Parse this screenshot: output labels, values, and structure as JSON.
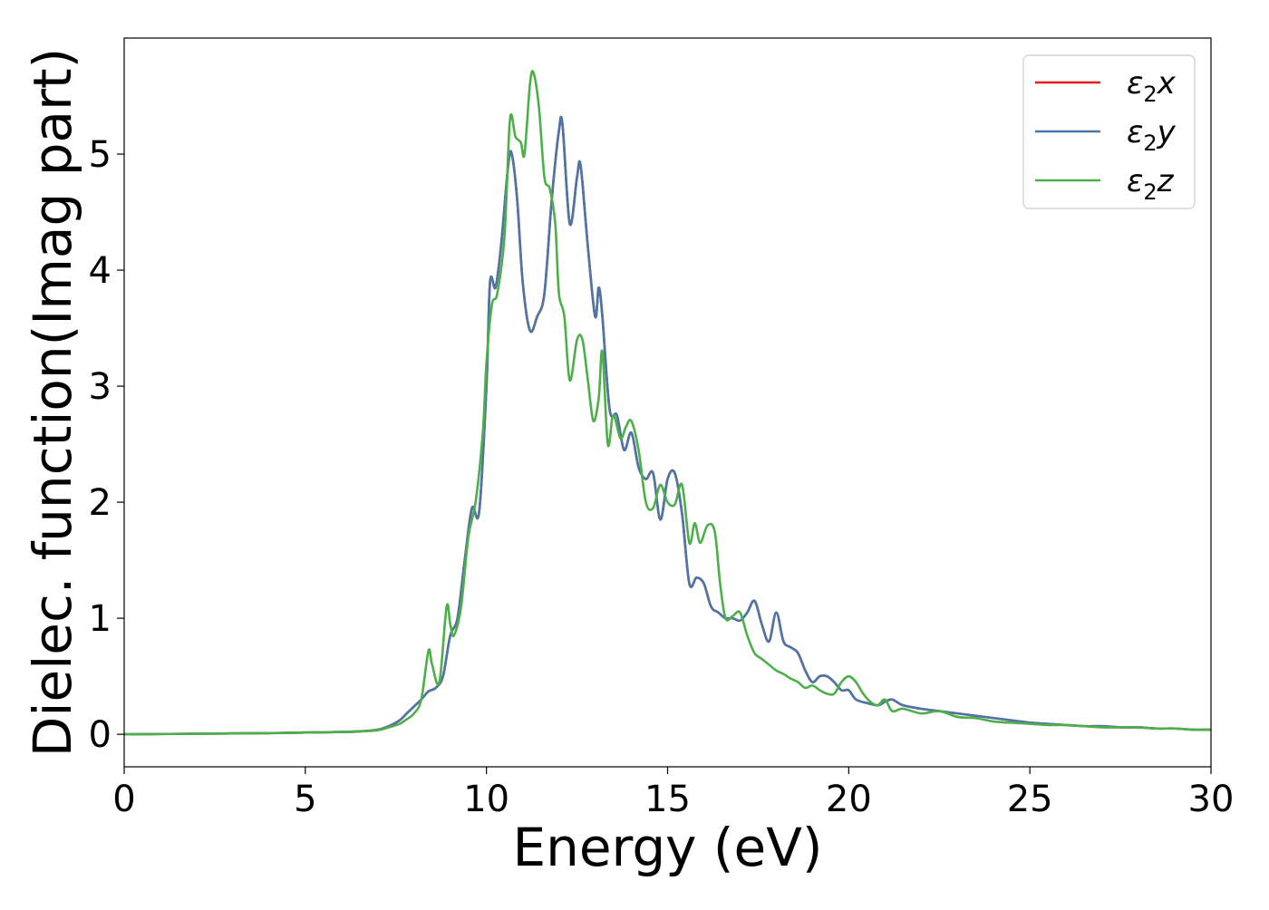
{
  "chart_data": {
    "type": "line",
    "xlabel": "Energy (eV)",
    "ylabel": "Dielec. function(Imag part)",
    "xlim": [
      0,
      30
    ],
    "ylim": [
      -0.28,
      6.0
    ],
    "xticks": [
      0,
      5,
      10,
      15,
      20,
      25,
      30
    ],
    "yticks": [
      0,
      1,
      2,
      3,
      4,
      5
    ],
    "grid": false,
    "legend_position": "top-right",
    "series": [
      {
        "name": "ε2x",
        "legend_base": "ε",
        "legend_sub": "2",
        "legend_tail": "x",
        "color": "#e41a1c",
        "x": [
          0,
          2,
          4,
          5,
          6,
          6.5,
          7,
          7.3,
          7.6,
          7.8,
          8.0,
          8.2,
          8.4,
          8.6,
          8.8,
          9.0,
          9.2,
          9.4,
          9.6,
          9.8,
          10.0,
          10.1,
          10.25,
          10.4,
          10.6,
          10.7,
          10.85,
          11.0,
          11.2,
          11.4,
          11.6,
          11.8,
          12.0,
          12.1,
          12.3,
          12.5,
          12.6,
          12.8,
          13.0,
          13.1,
          13.2,
          13.4,
          13.6,
          13.8,
          14.0,
          14.2,
          14.4,
          14.6,
          14.8,
          15.0,
          15.2,
          15.4,
          15.6,
          15.8,
          16.0,
          16.2,
          16.4,
          16.6,
          16.8,
          17.0,
          17.2,
          17.4,
          17.6,
          17.8,
          18.0,
          18.2,
          18.4,
          18.6,
          18.8,
          19.0,
          19.2,
          19.4,
          19.6,
          19.8,
          20.0,
          20.2,
          20.5,
          20.8,
          21.0,
          21.2,
          21.5,
          22.0,
          22.5,
          23.0,
          23.5,
          24.0,
          24.5,
          25.0,
          25.5,
          26.0,
          26.5,
          27.0,
          27.5,
          28.0,
          28.5,
          29.0,
          29.5,
          30.0
        ],
        "y": [
          0.0,
          0.005,
          0.01,
          0.015,
          0.02,
          0.025,
          0.04,
          0.07,
          0.12,
          0.18,
          0.24,
          0.3,
          0.37,
          0.4,
          0.5,
          0.85,
          1.0,
          1.5,
          1.95,
          1.92,
          3.0,
          3.9,
          3.85,
          4.2,
          4.9,
          5.0,
          4.6,
          3.9,
          3.48,
          3.6,
          3.8,
          4.6,
          5.2,
          5.25,
          4.4,
          4.8,
          4.9,
          4.2,
          3.6,
          3.85,
          3.6,
          2.8,
          2.75,
          2.45,
          2.6,
          2.3,
          2.2,
          2.25,
          1.85,
          2.2,
          2.25,
          1.9,
          1.3,
          1.35,
          1.3,
          1.1,
          1.05,
          1.0,
          1.0,
          0.98,
          1.05,
          1.15,
          0.95,
          0.8,
          1.05,
          0.8,
          0.75,
          0.7,
          0.55,
          0.45,
          0.5,
          0.5,
          0.45,
          0.38,
          0.38,
          0.3,
          0.27,
          0.25,
          0.28,
          0.3,
          0.25,
          0.22,
          0.2,
          0.18,
          0.16,
          0.14,
          0.12,
          0.1,
          0.09,
          0.08,
          0.07,
          0.07,
          0.06,
          0.06,
          0.05,
          0.05,
          0.04,
          0.04
        ]
      },
      {
        "name": "ε2y",
        "legend_base": "ε",
        "legend_sub": "2",
        "legend_tail": "y",
        "color": "#4a77a8",
        "x": [
          0,
          2,
          4,
          5,
          6,
          6.5,
          7,
          7.3,
          7.6,
          7.8,
          8.0,
          8.2,
          8.4,
          8.6,
          8.8,
          9.0,
          9.2,
          9.4,
          9.6,
          9.8,
          10.0,
          10.1,
          10.25,
          10.4,
          10.6,
          10.7,
          10.85,
          11.0,
          11.2,
          11.4,
          11.6,
          11.8,
          12.0,
          12.1,
          12.3,
          12.5,
          12.6,
          12.8,
          13.0,
          13.1,
          13.2,
          13.4,
          13.6,
          13.8,
          14.0,
          14.2,
          14.4,
          14.6,
          14.8,
          15.0,
          15.2,
          15.4,
          15.6,
          15.8,
          16.0,
          16.2,
          16.4,
          16.6,
          16.8,
          17.0,
          17.2,
          17.4,
          17.6,
          17.8,
          18.0,
          18.2,
          18.4,
          18.6,
          18.8,
          19.0,
          19.2,
          19.4,
          19.6,
          19.8,
          20.0,
          20.2,
          20.5,
          20.8,
          21.0,
          21.2,
          21.5,
          22.0,
          22.5,
          23.0,
          23.5,
          24.0,
          24.5,
          25.0,
          25.5,
          26.0,
          26.5,
          27.0,
          27.5,
          28.0,
          28.5,
          29.0,
          29.5,
          30.0
        ],
        "y": [
          0.0,
          0.005,
          0.01,
          0.015,
          0.02,
          0.025,
          0.04,
          0.07,
          0.12,
          0.18,
          0.24,
          0.3,
          0.37,
          0.4,
          0.5,
          0.85,
          1.0,
          1.5,
          1.95,
          1.92,
          3.0,
          3.9,
          3.85,
          4.2,
          4.9,
          5.0,
          4.6,
          3.9,
          3.48,
          3.6,
          3.8,
          4.6,
          5.2,
          5.25,
          4.4,
          4.8,
          4.9,
          4.2,
          3.6,
          3.85,
          3.6,
          2.8,
          2.75,
          2.45,
          2.6,
          2.3,
          2.2,
          2.25,
          1.85,
          2.2,
          2.25,
          1.9,
          1.3,
          1.35,
          1.3,
          1.1,
          1.05,
          1.0,
          1.0,
          0.98,
          1.05,
          1.15,
          0.95,
          0.8,
          1.05,
          0.8,
          0.75,
          0.7,
          0.55,
          0.45,
          0.5,
          0.5,
          0.45,
          0.38,
          0.38,
          0.3,
          0.27,
          0.25,
          0.28,
          0.3,
          0.25,
          0.22,
          0.2,
          0.18,
          0.16,
          0.14,
          0.12,
          0.1,
          0.09,
          0.08,
          0.07,
          0.07,
          0.06,
          0.06,
          0.05,
          0.05,
          0.04,
          0.04
        ]
      },
      {
        "name": "ε2z",
        "legend_base": "ε",
        "legend_sub": "2",
        "legend_tail": "z",
        "color": "#4daf4a",
        "x": [
          0,
          2,
          4,
          5,
          6,
          6.5,
          7,
          7.3,
          7.6,
          7.8,
          8.0,
          8.2,
          8.4,
          8.5,
          8.7,
          8.9,
          9.0,
          9.1,
          9.3,
          9.5,
          9.7,
          9.9,
          10.0,
          10.15,
          10.3,
          10.5,
          10.65,
          10.8,
          10.95,
          11.05,
          11.2,
          11.3,
          11.45,
          11.6,
          11.75,
          11.9,
          12.0,
          12.15,
          12.3,
          12.5,
          12.65,
          12.8,
          12.95,
          13.1,
          13.2,
          13.35,
          13.5,
          13.7,
          13.85,
          14.0,
          14.2,
          14.4,
          14.6,
          14.8,
          15.0,
          15.2,
          15.4,
          15.6,
          15.75,
          15.9,
          16.1,
          16.3,
          16.45,
          16.6,
          16.8,
          17.0,
          17.2,
          17.4,
          17.6,
          17.8,
          18.0,
          18.2,
          18.4,
          18.6,
          18.8,
          19.0,
          19.2,
          19.4,
          19.6,
          19.8,
          20.0,
          20.2,
          20.4,
          20.6,
          20.8,
          21.0,
          21.2,
          21.5,
          22.0,
          22.5,
          23.0,
          23.5,
          24.0,
          24.5,
          25.0,
          25.5,
          26.0,
          26.5,
          27.0,
          27.5,
          28.0,
          28.5,
          29.0,
          29.5,
          30.0
        ],
        "y": [
          0.0,
          0.005,
          0.01,
          0.015,
          0.02,
          0.025,
          0.035,
          0.06,
          0.09,
          0.13,
          0.18,
          0.3,
          0.72,
          0.6,
          0.45,
          1.1,
          0.95,
          0.85,
          1.1,
          1.7,
          2.0,
          2.6,
          3.2,
          3.7,
          3.8,
          4.3,
          5.3,
          5.15,
          5.1,
          5.0,
          5.6,
          5.7,
          5.4,
          4.8,
          4.7,
          4.4,
          3.8,
          3.6,
          3.05,
          3.4,
          3.4,
          3.05,
          2.7,
          2.9,
          3.3,
          2.5,
          2.75,
          2.55,
          2.65,
          2.7,
          2.45,
          2.0,
          1.95,
          2.15,
          2.0,
          1.98,
          2.15,
          1.65,
          1.82,
          1.65,
          1.8,
          1.75,
          1.3,
          1.0,
          1.02,
          1.05,
          0.85,
          0.7,
          0.65,
          0.6,
          0.55,
          0.52,
          0.48,
          0.45,
          0.4,
          0.42,
          0.38,
          0.35,
          0.35,
          0.45,
          0.5,
          0.45,
          0.35,
          0.28,
          0.25,
          0.3,
          0.2,
          0.22,
          0.18,
          0.2,
          0.15,
          0.14,
          0.11,
          0.1,
          0.09,
          0.08,
          0.08,
          0.07,
          0.06,
          0.06,
          0.06,
          0.05,
          0.05,
          0.04,
          0.04
        ]
      }
    ]
  }
}
